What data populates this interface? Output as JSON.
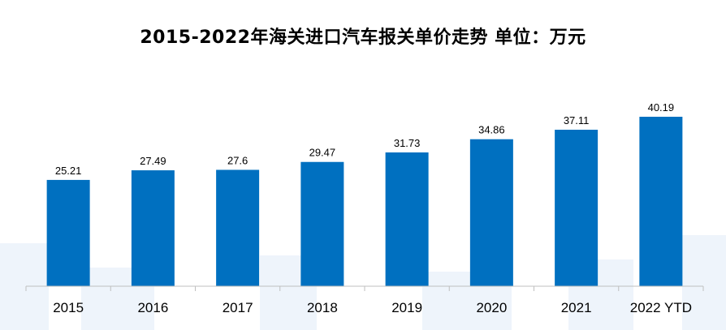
{
  "chart_data": {
    "type": "bar",
    "title": "2015-2022年海关进口汽车报关单价走势 单位：万元",
    "categories": [
      "2015",
      "2016",
      "2017",
      "2018",
      "2019",
      "2020",
      "2021",
      "2022 YTD"
    ],
    "values": [
      25.21,
      27.49,
      27.6,
      29.47,
      31.73,
      34.86,
      37.11,
      40.19
    ],
    "value_labels": [
      "25.21",
      "27.49",
      "27.6",
      "29.47",
      "31.73",
      "34.86",
      "37.11",
      "40.19"
    ],
    "xlabel": "",
    "ylabel": "",
    "ylim": [
      0,
      50
    ],
    "grid": false,
    "legend": "none",
    "bar_color": "#0070C0"
  }
}
